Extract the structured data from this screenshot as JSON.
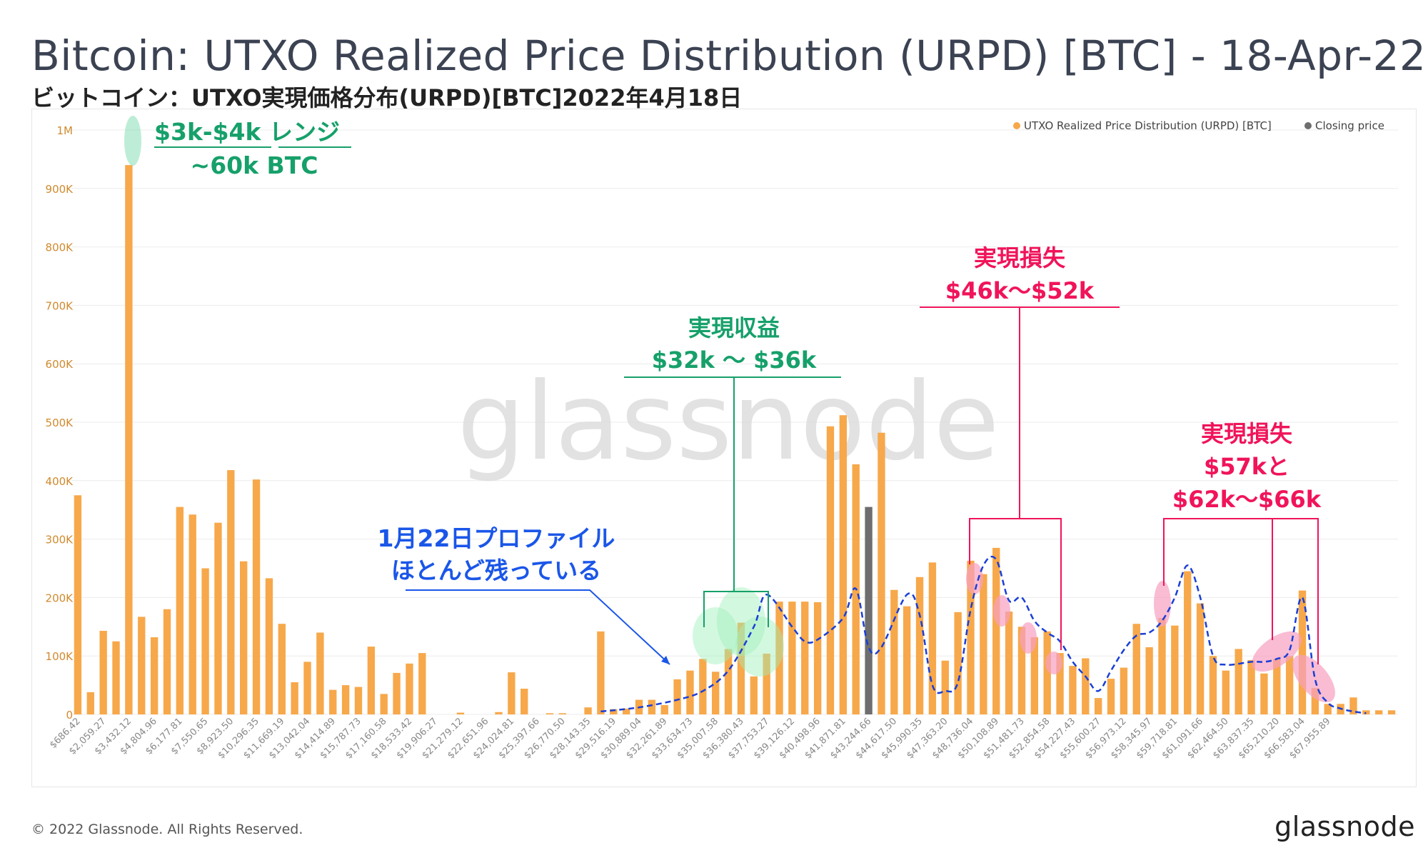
{
  "header": {
    "title": "Bitcoin: UTXO Realized Price Distribution (URPD) [BTC] - 18-Apr-22",
    "subtitle": "ビットコイン：UTXO実現価格分布(URPD)[BTC]2022年4月18日"
  },
  "footer": {
    "copyright": "© 2022 Glassnode. All Rights Reserved.",
    "logo": "glassnode"
  },
  "watermark": "glassnode",
  "colors": {
    "bar": "#f7a84a",
    "closing": "#6e6e6e",
    "grid": "#ececec",
    "green": "#16a06a",
    "pink": "#f0145a",
    "blue": "#1a56e8"
  },
  "annotations": {
    "range_line1": "$3k-$4k レンジ",
    "range_line2": "~60k BTC",
    "profit_line1": "実現収益",
    "profit_line2": "$32k ～ $36k",
    "loss1_line1": "実現損失",
    "loss1_line2": "$46k～$52k",
    "loss2_line1": "実現損失",
    "loss2_line2": "$57kと",
    "loss2_line3": "$62k～$66k",
    "profile_line1": "1月22日プロファイル",
    "profile_line2": "ほとんど残っている"
  },
  "chart_data": {
    "type": "bar",
    "title": "Bitcoin: UTXO Realized Price Distribution (URPD) [BTC] - 18-Apr-22",
    "xlabel": "",
    "ylabel": "",
    "ylim": [
      0,
      1000000
    ],
    "y_ticks": [
      "0",
      "100K",
      "200K",
      "300K",
      "400K",
      "500K",
      "600K",
      "700K",
      "800K",
      "900K",
      "1M"
    ],
    "x_tick_labels": [
      "$686.42",
      "$2,059.27",
      "$3,432.12",
      "$4,804.96",
      "$6,177.81",
      "$7,550.65",
      "$8,923.50",
      "$10,296.35",
      "$11,669.19",
      "$13,042.04",
      "$14,414.89",
      "$15,787.73",
      "$17,160.58",
      "$18,533.42",
      "$19,906.27",
      "$21,279.12",
      "$22,651.96",
      "$24,024.81",
      "$25,397.66",
      "$26,770.50",
      "$28,143.35",
      "$29,516.19",
      "$30,889.04",
      "$32,261.89",
      "$33,634.73",
      "$35,007.58",
      "$36,380.43",
      "$37,753.27",
      "$39,126.12",
      "$40,498.96",
      "$41,871.81",
      "$43,244.66",
      "$44,617.50",
      "$45,990.35",
      "$47,363.20",
      "$48,736.04",
      "$50,108.89",
      "$51,481.73",
      "$52,854.58",
      "$54,227.43",
      "$55,600.27",
      "$56,973.12",
      "$58,345.97",
      "$59,718.81",
      "$61,091.66",
      "$62,464.50",
      "$63,837.35",
      "$65,210.20",
      "$66,583.04",
      "$67,955.89"
    ],
    "legend": [
      "UTXO Realized Price Distribution (URPD) [BTC]",
      "Closing price"
    ],
    "legend_position": "top-right",
    "closing_price_bar_index": 62,
    "values": [
      375000,
      38000,
      143000,
      125000,
      940000,
      167000,
      132000,
      180000,
      355000,
      342000,
      250000,
      328000,
      418000,
      262000,
      402000,
      233000,
      155000,
      55000,
      90000,
      140000,
      42000,
      50000,
      47000,
      116000,
      35000,
      71000,
      87000,
      105000,
      0,
      0,
      3000,
      0,
      0,
      4000,
      72000,
      44000,
      0,
      2000,
      2000,
      0,
      12000,
      142000,
      9000,
      10000,
      25000,
      25000,
      16000,
      60000,
      75000,
      95000,
      73000,
      112000,
      157000,
      65000,
      104000,
      193000,
      193000,
      193000,
      192000,
      493000,
      512000,
      428000,
      355000,
      482000,
      213000,
      185000,
      235000,
      260000,
      92000,
      175000,
      263000,
      240000,
      285000,
      176000,
      150000,
      132000,
      142000,
      105000,
      83000,
      96000,
      28000,
      61000,
      80000,
      155000,
      115000,
      165000,
      152000,
      245000,
      190000,
      100000,
      75000,
      112000,
      93000,
      70000,
      95000,
      100000,
      212000,
      45000,
      18000,
      18000,
      29000,
      7000,
      7000,
      7000
    ],
    "profile_curve": [
      [
        41,
        5000
      ],
      [
        44,
        12000
      ],
      [
        47,
        25000
      ],
      [
        49,
        40000
      ],
      [
        51,
        75000
      ],
      [
        53,
        150000
      ],
      [
        54,
        205000
      ],
      [
        56,
        150000
      ],
      [
        57,
        125000
      ],
      [
        58,
        128000
      ],
      [
        60,
        165000
      ],
      [
        61,
        215000
      ],
      [
        62,
        115000
      ],
      [
        63,
        115000
      ],
      [
        65,
        205000
      ],
      [
        66,
        170000
      ],
      [
        67,
        50000
      ],
      [
        68,
        40000
      ],
      [
        69,
        55000
      ],
      [
        70,
        180000
      ],
      [
        71,
        255000
      ],
      [
        72,
        265000
      ],
      [
        73,
        195000
      ],
      [
        74,
        200000
      ],
      [
        75,
        160000
      ],
      [
        76,
        140000
      ],
      [
        77,
        125000
      ],
      [
        78,
        90000
      ],
      [
        79,
        65000
      ],
      [
        80,
        40000
      ],
      [
        81,
        75000
      ],
      [
        82,
        110000
      ],
      [
        83,
        135000
      ],
      [
        84,
        140000
      ],
      [
        85,
        160000
      ],
      [
        86,
        200000
      ],
      [
        87,
        255000
      ],
      [
        88,
        200000
      ],
      [
        89,
        100000
      ],
      [
        90,
        85000
      ],
      [
        92,
        90000
      ],
      [
        93,
        90000
      ],
      [
        94,
        95000
      ],
      [
        95,
        110000
      ],
      [
        96,
        200000
      ],
      [
        97,
        60000
      ],
      [
        98,
        20000
      ],
      [
        99,
        10000
      ],
      [
        100,
        5000
      ],
      [
        101,
        2000
      ]
    ]
  }
}
